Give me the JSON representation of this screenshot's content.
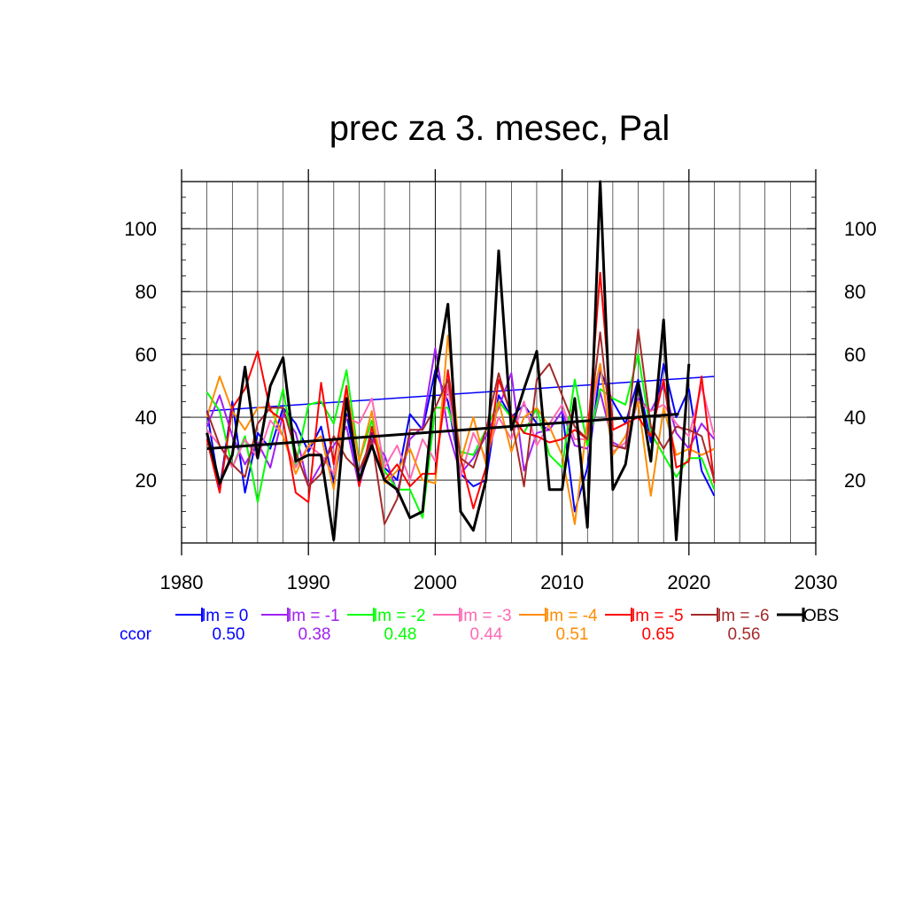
{
  "chart_data": {
    "type": "line",
    "title": "prec za 3. mesec, Pal",
    "xlim": [
      1980,
      2030
    ],
    "ylim": [
      0,
      115
    ],
    "x_ticks": [
      "1980",
      "1990",
      "2000",
      "2010",
      "2020",
      "2030"
    ],
    "y_ticks": [
      "20",
      "40",
      "60",
      "80",
      "100"
    ],
    "grid": true,
    "legend_placement": "bottom",
    "ccor_label": "ccor",
    "x": [
      1982,
      1983,
      1984,
      1985,
      1986,
      1987,
      1988,
      1989,
      1990,
      1991,
      1992,
      1993,
      1994,
      1995,
      1996,
      1997,
      1998,
      1999,
      2000,
      2001,
      2002,
      2003,
      2004,
      2005,
      2006,
      2007,
      2008,
      2009,
      2010,
      2011,
      2012,
      2013,
      2014,
      2015,
      2016,
      2017,
      2018,
      2019,
      2020,
      2021,
      2022
    ],
    "series": [
      {
        "name": "lm = 0",
        "color": "#0000ff",
        "ccor": "0.50",
        "values": [
          42,
          17,
          45,
          16,
          35,
          30,
          43,
          38,
          29,
          37,
          19,
          41,
          20,
          35,
          24,
          20,
          41,
          36,
          55,
          45,
          22,
          18,
          20,
          47,
          40,
          44,
          38,
          36,
          42,
          10,
          24,
          55,
          45,
          38,
          52,
          32,
          57,
          40,
          49,
          23,
          15
        ],
        "trend": [
          42,
          53
        ]
      },
      {
        "name": "lm = -1",
        "color": "#a020f0",
        "ccor": "0.38",
        "values": [
          37,
          47,
          34,
          25,
          32,
          24,
          41,
          35,
          18,
          25,
          31,
          37,
          18,
          33,
          28,
          16,
          33,
          37,
          62,
          36,
          22,
          27,
          34,
          43,
          54,
          23,
          35,
          36,
          42,
          31,
          30,
          48,
          32,
          30,
          46,
          42,
          50,
          35,
          30,
          38,
          33
        ]
      },
      {
        "name": "lm = -2",
        "color": "#00ff00",
        "ccor": "0.48",
        "values": [
          48,
          42,
          24,
          34,
          13,
          33,
          49,
          25,
          44,
          45,
          38,
          55,
          26,
          39,
          23,
          17,
          17,
          8,
          43,
          43,
          29,
          28,
          36,
          45,
          40,
          35,
          43,
          28,
          24,
          52,
          31,
          49,
          46,
          44,
          60,
          35,
          28,
          21,
          27,
          27,
          17
        ]
      },
      {
        "name": "lm = -3",
        "color": "#ff69b4",
        "ccor": "0.44",
        "values": [
          36,
          31,
          24,
          33,
          27,
          39,
          34,
          24,
          31,
          28,
          22,
          40,
          38,
          46,
          24,
          31,
          20,
          33,
          26,
          50,
          21,
          35,
          27,
          40,
          33,
          45,
          31,
          38,
          44,
          33,
          33,
          57,
          29,
          32,
          45,
          42,
          44,
          38,
          34,
          50,
          34
        ]
      },
      {
        "name": "lm = -4",
        "color": "#ff8c00",
        "ccor": "0.51",
        "values": [
          40,
          53,
          42,
          36,
          43,
          43,
          34,
          22,
          31,
          34,
          17,
          49,
          26,
          42,
          19,
          23,
          30,
          20,
          19,
          66,
          26,
          40,
          25,
          45,
          29,
          40,
          43,
          37,
          28,
          6,
          39,
          57,
          28,
          34,
          45,
          15,
          43,
          28,
          30,
          28,
          30
        ]
      },
      {
        "name": "lm = -5",
        "color": "#ff0000",
        "ccor": "0.65",
        "values": [
          33,
          16,
          43,
          49,
          61,
          42,
          39,
          16,
          13,
          51,
          25,
          50,
          18,
          37,
          20,
          25,
          18,
          22,
          22,
          55,
          27,
          11,
          24,
          52,
          41,
          35,
          34,
          32,
          33,
          36,
          33,
          86,
          36,
          38,
          40,
          34,
          52,
          24,
          26,
          53,
          19
        ]
      },
      {
        "name": "lm = -6",
        "color": "#a52a2a",
        "ccor": "0.56",
        "values": [
          42,
          31,
          25,
          21,
          38,
          43,
          43,
          29,
          18,
          22,
          34,
          27,
          23,
          33,
          6,
          14,
          36,
          36,
          43,
          52,
          27,
          24,
          36,
          54,
          40,
          18,
          52,
          57,
          47,
          37,
          33,
          67,
          31,
          30,
          68,
          37,
          30,
          37,
          36,
          34,
          20
        ]
      },
      {
        "name": "OBS",
        "color": "#000000",
        "ccor": "",
        "values": [
          35,
          19,
          28,
          56,
          27,
          50,
          59,
          26,
          28,
          28,
          1,
          46,
          20,
          31,
          20,
          17,
          8,
          10,
          52,
          76,
          10,
          4,
          20,
          93,
          36,
          49,
          61,
          17,
          17,
          46,
          5,
          115,
          17,
          25,
          51,
          26,
          71,
          1,
          57,
          null,
          null
        ],
        "trend": [
          30,
          41
        ]
      }
    ]
  }
}
